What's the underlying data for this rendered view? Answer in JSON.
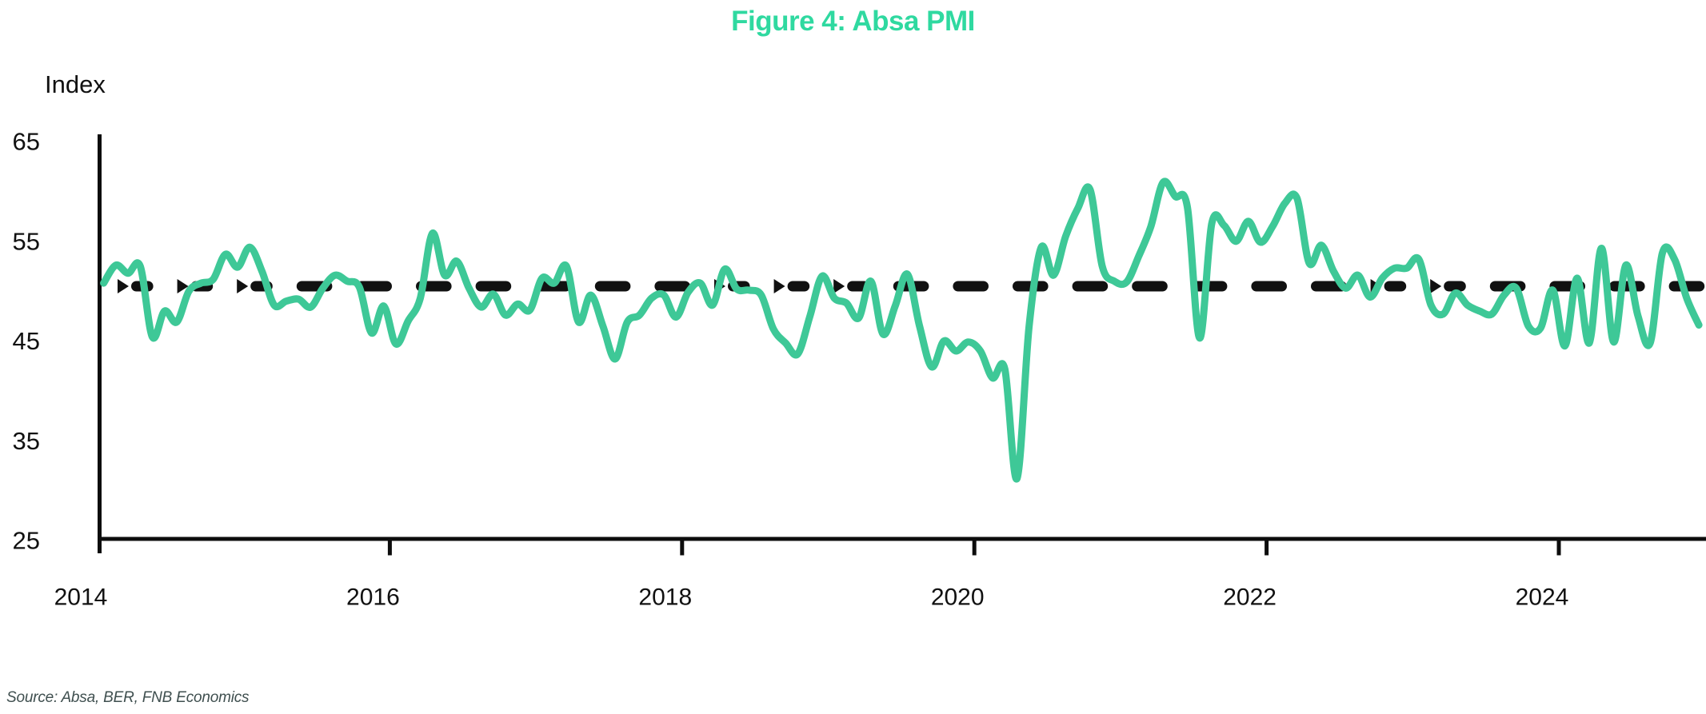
{
  "title": "Figure 4: Absa PMI",
  "y_axis_label": "Index",
  "source_note": "Source: Absa, BER, FNB Economics",
  "colors": {
    "title_green": "#2FD9A0",
    "line_green": "#3EC897",
    "axis_ink": "#0d0d0d",
    "reference_ink": "#111111",
    "source_ink": "#3f4f4f",
    "background": "#ffffff"
  },
  "chart_data": {
    "type": "line",
    "title": "Figure 4: Absa PMI",
    "ylabel": "Index",
    "xlabel": "",
    "ylim": [
      25,
      65
    ],
    "y_ticks": [
      65,
      55,
      45,
      35,
      25
    ],
    "x_ticks": [
      2014,
      2016,
      2018,
      2020,
      2022,
      2024
    ],
    "grid": false,
    "legend": false,
    "reference_line": {
      "value": 50,
      "style": "thick-dashed-with-arrowheads",
      "color": "#111111",
      "arrow_dash_indices": [
        0,
        1,
        2,
        10,
        11,
        12,
        21,
        22
      ]
    },
    "series": [
      {
        "name": "Absa PMI",
        "color": "#3EC897",
        "start": "2014-01",
        "frequency": "monthly",
        "values": [
          50.8,
          52.6,
          51.8,
          52.5,
          45.4,
          48.0,
          46.9,
          50.0,
          50.8,
          51.2,
          53.7,
          52.4,
          54.4,
          52.0,
          48.6,
          49.0,
          49.2,
          48.4,
          50.3,
          51.6,
          51.0,
          50.4,
          45.8,
          48.5,
          44.7,
          47.0,
          49.3,
          55.8,
          51.6,
          53.0,
          50.3,
          48.4,
          49.7,
          47.6,
          48.7,
          48.1,
          51.3,
          50.8,
          52.5,
          46.9,
          49.6,
          46.5,
          43.2,
          46.9,
          47.6,
          49.3,
          49.6,
          47.4,
          49.9,
          50.8,
          48.6,
          52.2,
          50.2,
          50.1,
          49.6,
          46.2,
          44.8,
          43.7,
          47.5,
          51.5,
          49.3,
          48.8,
          47.3,
          51.0,
          45.7,
          48.5,
          51.7,
          46.5,
          42.4,
          45.0,
          44.0,
          44.9,
          44.0,
          41.3,
          42.2,
          31.2,
          46.5,
          54.4,
          51.6,
          55.5,
          58.3,
          60.2,
          52.5,
          51.0,
          50.9,
          53.5,
          56.5,
          60.9,
          59.5,
          58.4,
          45.3,
          56.8,
          56.6,
          55.0,
          57.0,
          54.9,
          56.5,
          58.8,
          59.3,
          52.8,
          54.6,
          52.0,
          50.3,
          51.6,
          49.4,
          51.3,
          52.3,
          52.3,
          53.2,
          48.6,
          47.7,
          49.8,
          48.6,
          48.0,
          47.7,
          49.6,
          50.3,
          46.5,
          46.3,
          50.1,
          44.5,
          51.3,
          44.8,
          54.3,
          44.9,
          52.6,
          47.5,
          44.8,
          53.8,
          53.2,
          49.3,
          46.6
        ]
      }
    ]
  }
}
